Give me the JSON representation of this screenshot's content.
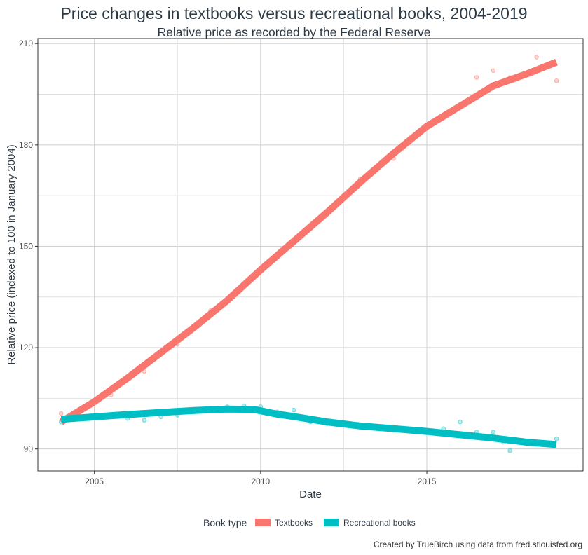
{
  "chart_data": {
    "type": "scatter",
    "title": "Price changes in textbooks versus recreational books, 2004-2019",
    "subtitle": "Relative price as recorded by the Federal Reserve",
    "xlabel": "Date",
    "ylabel": "Relative price (indexed to 100 in January 2004)",
    "xlim": [
      2003.3,
      2019.7
    ],
    "ylim": [
      83.5,
      211.5
    ],
    "x_ticks": [
      {
        "value": 2005,
        "label": "2005"
      },
      {
        "value": 2010,
        "label": "2010"
      },
      {
        "value": 2015,
        "label": "2015"
      }
    ],
    "y_ticks": [
      {
        "value": 90,
        "label": "90"
      },
      {
        "value": 120,
        "label": "120"
      },
      {
        "value": 150,
        "label": "150"
      },
      {
        "value": 180,
        "label": "180"
      },
      {
        "value": 210,
        "label": "210"
      }
    ],
    "grid": true,
    "legend": {
      "title": "Book type",
      "position": "bottom",
      "entries": [
        {
          "label": "Textbooks",
          "color": "#f8766d"
        },
        {
          "label": "Recreational books",
          "color": "#00bfc4"
        }
      ]
    },
    "series": [
      {
        "name": "Textbooks",
        "color": "#f8766d",
        "trend": [
          [
            2004.0,
            98
          ],
          [
            2005.0,
            104
          ],
          [
            2006.0,
            111
          ],
          [
            2007.0,
            118.5
          ],
          [
            2008.0,
            126
          ],
          [
            2009.0,
            134
          ],
          [
            2010.0,
            143
          ],
          [
            2011.0,
            151.5
          ],
          [
            2012.0,
            160
          ],
          [
            2013.0,
            169
          ],
          [
            2014.0,
            177.5
          ],
          [
            2015.0,
            185.5
          ],
          [
            2016.0,
            191.5
          ],
          [
            2017.0,
            197.5
          ],
          [
            2018.0,
            201
          ],
          [
            2018.9,
            204.5
          ]
        ],
        "points": [
          [
            2004.0,
            100.5
          ],
          [
            2004.5,
            101
          ],
          [
            2005.0,
            104
          ],
          [
            2005.5,
            106
          ],
          [
            2006.0,
            111
          ],
          [
            2006.5,
            113
          ],
          [
            2007.0,
            118
          ],
          [
            2007.5,
            121
          ],
          [
            2008.0,
            126
          ],
          [
            2008.5,
            131
          ],
          [
            2009.0,
            134.5
          ],
          [
            2009.5,
            139
          ],
          [
            2010.0,
            143.5
          ],
          [
            2010.5,
            147
          ],
          [
            2011.0,
            152
          ],
          [
            2011.5,
            156
          ],
          [
            2012.0,
            160
          ],
          [
            2012.5,
            165
          ],
          [
            2013.0,
            170
          ],
          [
            2013.5,
            173
          ],
          [
            2014.0,
            176
          ],
          [
            2014.5,
            182
          ],
          [
            2015.0,
            185
          ],
          [
            2015.5,
            188
          ],
          [
            2016.0,
            192
          ],
          [
            2016.5,
            200
          ],
          [
            2017.0,
            202
          ],
          [
            2017.5,
            200
          ],
          [
            2018.0,
            201
          ],
          [
            2018.3,
            206
          ],
          [
            2018.6,
            203
          ],
          [
            2018.9,
            199
          ]
        ]
      },
      {
        "name": "Recreational books",
        "color": "#00bfc4",
        "trend": [
          [
            2004.0,
            98.8
          ],
          [
            2005.0,
            99.5
          ],
          [
            2006.0,
            100.2
          ],
          [
            2007.0,
            100.8
          ],
          [
            2008.0,
            101.4
          ],
          [
            2009.0,
            101.8
          ],
          [
            2009.8,
            101.7
          ],
          [
            2010.5,
            100.3
          ],
          [
            2011.0,
            99.6
          ],
          [
            2012.0,
            98
          ],
          [
            2013.0,
            96.8
          ],
          [
            2014.0,
            96
          ],
          [
            2015.0,
            95.2
          ],
          [
            2016.0,
            94.2
          ],
          [
            2017.0,
            93.2
          ],
          [
            2018.0,
            92
          ],
          [
            2018.9,
            91.3
          ]
        ],
        "points": [
          [
            2004.0,
            98
          ],
          [
            2004.5,
            99
          ],
          [
            2005.0,
            99.5
          ],
          [
            2005.5,
            100
          ],
          [
            2006.0,
            99
          ],
          [
            2006.5,
            98.5
          ],
          [
            2007.0,
            99.5
          ],
          [
            2007.5,
            100
          ],
          [
            2008.0,
            101
          ],
          [
            2008.5,
            102
          ],
          [
            2009.0,
            102.5
          ],
          [
            2009.5,
            102.8
          ],
          [
            2010.0,
            102.5
          ],
          [
            2010.5,
            101
          ],
          [
            2011.0,
            101.5
          ],
          [
            2011.5,
            98
          ],
          [
            2012.0,
            97.5
          ],
          [
            2012.5,
            97
          ],
          [
            2013.0,
            96.5
          ],
          [
            2013.5,
            96.5
          ],
          [
            2014.0,
            96
          ],
          [
            2014.5,
            95.5
          ],
          [
            2015.0,
            95.5
          ],
          [
            2015.5,
            96
          ],
          [
            2016.0,
            98
          ],
          [
            2016.5,
            95
          ],
          [
            2017.0,
            95
          ],
          [
            2017.3,
            92
          ],
          [
            2017.5,
            89.5
          ],
          [
            2018.0,
            91.5
          ],
          [
            2018.5,
            92
          ],
          [
            2018.9,
            93
          ]
        ]
      }
    ]
  },
  "caption": "Created by TrueBirch using data from fred.stlouisfed.org"
}
